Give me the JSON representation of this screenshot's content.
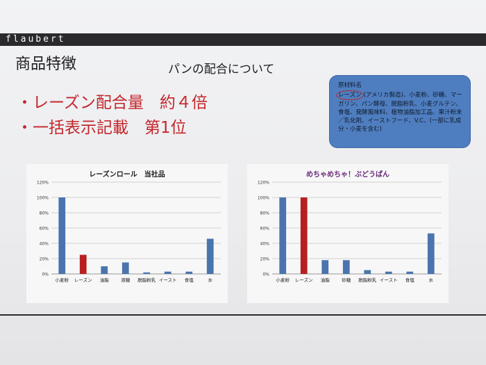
{
  "brand": "flaubert",
  "heading": "商品特徴",
  "subheading": "パンの配合について",
  "features": [
    "・レーズン配合量　約４倍",
    "・一括表示記載　第1位"
  ],
  "ingredients": {
    "title": "原材料名",
    "highlight": "レーズン",
    "text": "(アメリカ製造)、小麦粉、砂糖、マーガリン、パン酵母、脱脂粉乳、小麦グルテン、食塩、発酵風味料、植物油脂加工品、果汁粉末／乳化剤、イーストフード、V.C、(一部に乳成分・小麦を含む)"
  },
  "colors": {
    "bar_blue": "#4a74ad",
    "bar_red": "#b8201f",
    "accent_red": "#c4262b",
    "box_blue": "#4f7ec0"
  },
  "chart_data": [
    {
      "type": "bar",
      "title": "レーズンロール　当社品",
      "categories": [
        "小麦粉",
        "レーズン",
        "油脂",
        "液糖",
        "脱脂粉乳",
        "イースト",
        "食塩",
        "水"
      ],
      "values": [
        100,
        25,
        10,
        15,
        2,
        3,
        3,
        46
      ],
      "highlight_index": 1,
      "ylim": [
        0,
        120
      ],
      "yticks": [
        "0%",
        "20%",
        "40%",
        "60%",
        "80%",
        "100%",
        "120%"
      ],
      "grid": true,
      "legend": "none"
    },
    {
      "type": "bar",
      "title": "めちゃめちゃ！ぶどうぱん",
      "categories": [
        "小麦粉",
        "レーズン",
        "油脂",
        "砂糖",
        "脱脂粉乳",
        "イースト",
        "食塩",
        "水"
      ],
      "values": [
        100,
        100,
        18,
        18,
        5,
        3,
        3,
        53
      ],
      "highlight_index": 1,
      "ylim": [
        0,
        120
      ],
      "yticks": [
        "0%",
        "20%",
        "40%",
        "60%",
        "80%",
        "100%",
        "120%"
      ],
      "grid": true,
      "legend": "none"
    }
  ]
}
